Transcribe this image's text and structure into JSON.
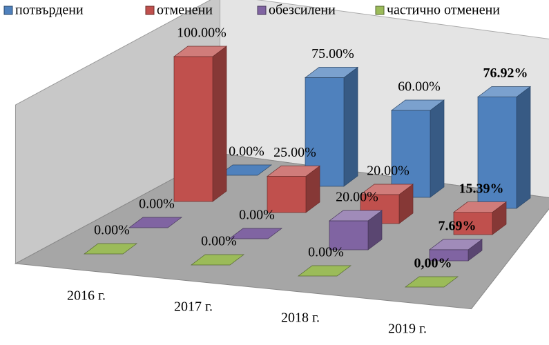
{
  "chart_data": {
    "type": "bar3d",
    "categories": [
      "2016 г.",
      "2017 г.",
      "2018 г.",
      "2019 г."
    ],
    "series": [
      {
        "name": "потвърдени",
        "color": "#4f81bd",
        "values": [
          0,
          75,
          60,
          76.92
        ],
        "value_labels": [
          "0.00%",
          "75.00%",
          "60.00%",
          "76.92%"
        ]
      },
      {
        "name": "отменени",
        "color": "#c0504d",
        "values": [
          100,
          25,
          20,
          15.39
        ],
        "value_labels": [
          "100.00%",
          "25.00%",
          "20.00%",
          "15.39%"
        ]
      },
      {
        "name": "обезсилени",
        "color": "#8064a2",
        "values": [
          0,
          0,
          20,
          7.69
        ],
        "value_labels": [
          "0.00%",
          "0.00%",
          "20.00%",
          "7.69%"
        ]
      },
      {
        "name": "частично отменени",
        "color": "#9bbb59",
        "values": [
          0,
          0,
          0,
          0
        ],
        "value_labels": [
          "0.00%",
          "0.00%",
          "0.00%",
          "0,00%"
        ]
      }
    ],
    "ylim": [
      0,
      100
    ]
  }
}
